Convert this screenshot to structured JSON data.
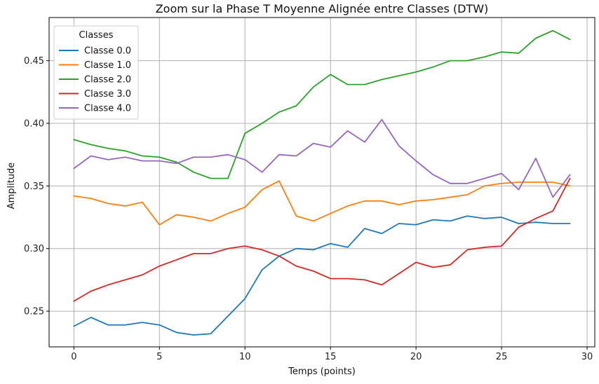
{
  "chart_data": {
    "type": "line",
    "title": "Zoom sur la Phase T Moyenne Alignée entre Classes (DTW)",
    "xlabel": "Temps (points)",
    "ylabel": "Amplitude",
    "xlim": [
      -1.45,
      30.45
    ],
    "ylim": [
      0.2215,
      0.4845
    ],
    "xticks": [
      0,
      5,
      10,
      15,
      20,
      25,
      30
    ],
    "xtick_labels": [
      "0",
      "5",
      "10",
      "15",
      "20",
      "25",
      "30"
    ],
    "yticks": [
      0.25,
      0.3,
      0.35,
      0.4,
      0.45
    ],
    "ytick_labels": [
      "0.25",
      "0.30",
      "0.35",
      "0.40",
      "0.45"
    ],
    "grid": true,
    "legend_title": "Classes",
    "legend_position": "top-left",
    "x": [
      0,
      1,
      2,
      3,
      4,
      5,
      6,
      7,
      8,
      9,
      10,
      11,
      12,
      13,
      14,
      15,
      16,
      17,
      18,
      19,
      20,
      21,
      22,
      23,
      24,
      25,
      26,
      27,
      28,
      29
    ],
    "series": [
      {
        "name": "Classe 0.0",
        "color": "#1f77b4",
        "values": [
          0.238,
          0.245,
          0.239,
          0.239,
          0.241,
          0.239,
          0.233,
          0.231,
          0.232,
          0.246,
          0.26,
          0.283,
          0.294,
          0.3,
          0.299,
          0.304,
          0.301,
          0.316,
          0.312,
          0.32,
          0.319,
          0.323,
          0.322,
          0.326,
          0.324,
          0.325,
          0.32,
          0.321,
          0.32,
          0.32
        ]
      },
      {
        "name": "Classe 1.0",
        "color": "#ff7f0e",
        "values": [
          0.342,
          0.34,
          0.336,
          0.334,
          0.337,
          0.319,
          0.327,
          0.325,
          0.322,
          0.328,
          0.333,
          0.347,
          0.354,
          0.326,
          0.322,
          0.328,
          0.334,
          0.338,
          0.338,
          0.335,
          0.338,
          0.339,
          0.341,
          0.343,
          0.35,
          0.352,
          0.353,
          0.353,
          0.353,
          0.35
        ]
      },
      {
        "name": "Classe 2.0",
        "color": "#2ca02c",
        "values": [
          0.387,
          0.383,
          0.38,
          0.378,
          0.374,
          0.373,
          0.369,
          0.361,
          0.356,
          0.356,
          0.392,
          0.4,
          0.409,
          0.414,
          0.429,
          0.439,
          0.431,
          0.431,
          0.435,
          0.438,
          0.441,
          0.445,
          0.45,
          0.45,
          0.453,
          0.457,
          0.456,
          0.468,
          0.474,
          0.467
        ]
      },
      {
        "name": "Classe 3.0",
        "color": "#d62728",
        "values": [
          0.258,
          0.266,
          0.271,
          0.275,
          0.279,
          0.286,
          0.291,
          0.296,
          0.296,
          0.3,
          0.302,
          0.299,
          0.294,
          0.286,
          0.282,
          0.276,
          0.276,
          0.275,
          0.271,
          0.28,
          0.289,
          0.285,
          0.287,
          0.299,
          0.301,
          0.302,
          0.317,
          0.324,
          0.33,
          0.356
        ]
      },
      {
        "name": "Classe 4.0",
        "color": "#9467bd",
        "values": [
          0.364,
          0.374,
          0.371,
          0.373,
          0.37,
          0.37,
          0.368,
          0.373,
          0.373,
          0.375,
          0.371,
          0.361,
          0.375,
          0.374,
          0.384,
          0.381,
          0.394,
          0.385,
          0.403,
          0.382,
          0.37,
          0.359,
          0.352,
          0.352,
          0.356,
          0.36,
          0.347,
          0.372,
          0.341,
          0.359
        ]
      }
    ]
  }
}
